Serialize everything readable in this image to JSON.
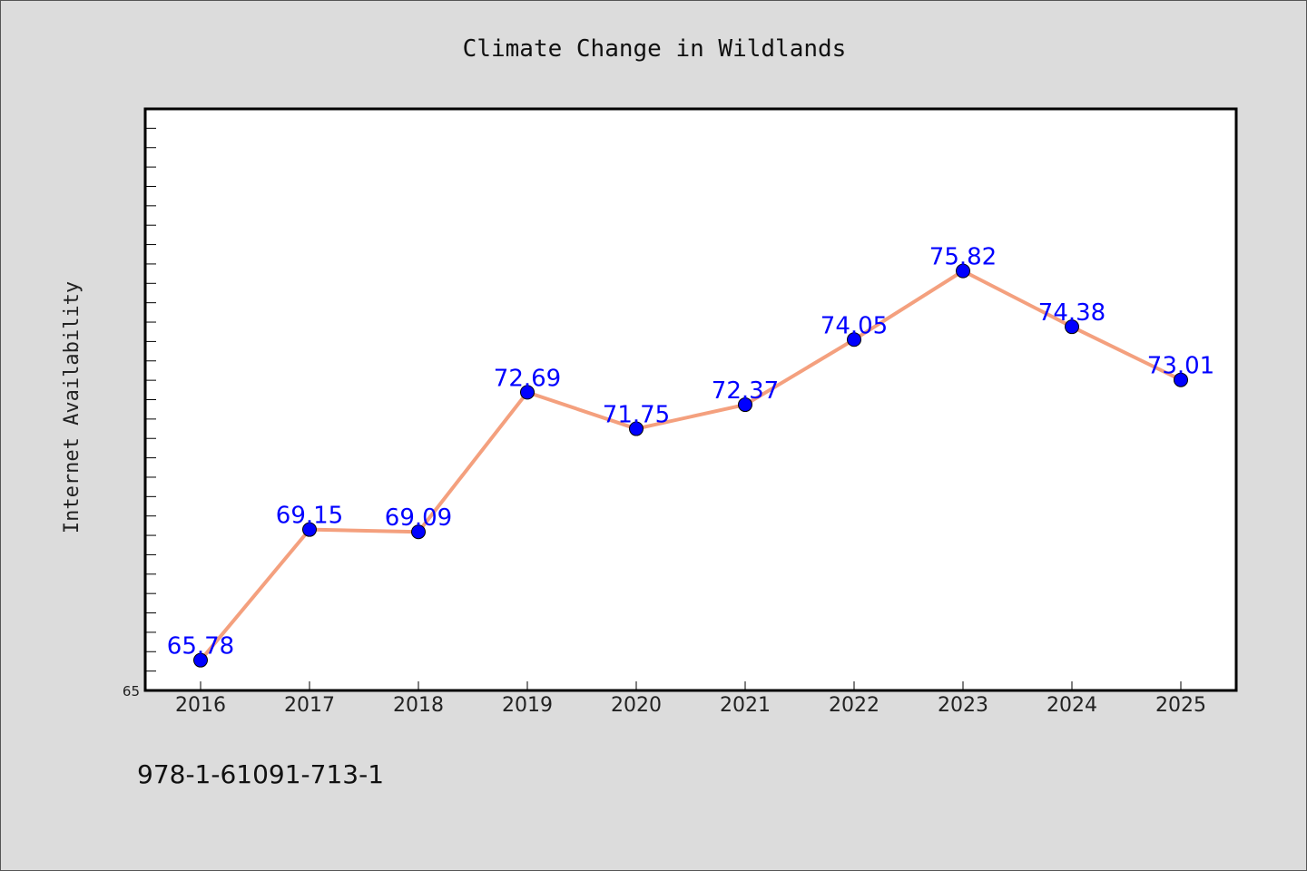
{
  "chart_data": {
    "type": "line",
    "title": "Climate Change in Wildlands",
    "xlabel": "",
    "ylabel": "Internet Availability",
    "categories": [
      "2016",
      "2017",
      "2018",
      "2019",
      "2020",
      "2021",
      "2022",
      "2023",
      "2024",
      "2025"
    ],
    "series": [
      {
        "values": [
          65.78,
          69.15,
          69.09,
          72.69,
          71.75,
          72.37,
          74.05,
          75.82,
          74.38,
          73.01
        ],
        "data_labels": [
          "65.78",
          "69.15",
          "69.09",
          "72.69",
          "71.75",
          "72.37",
          "74.05",
          "75.82",
          "74.38",
          "73.01"
        ],
        "line_color": "#f4a07e",
        "marker_color": "#0000ff"
      }
    ],
    "ylim": [
      65,
      80
    ],
    "y_tick_labels": [
      "65"
    ],
    "grid": false,
    "legend": "none"
  },
  "footer": {
    "isbn": "978-1-61091-713-1"
  },
  "colors": {
    "background": "#dcdcdc",
    "plot_background": "#ffffff",
    "line": "#f4a07e",
    "marker": "#0000ff",
    "data_label": "#0000ff"
  }
}
